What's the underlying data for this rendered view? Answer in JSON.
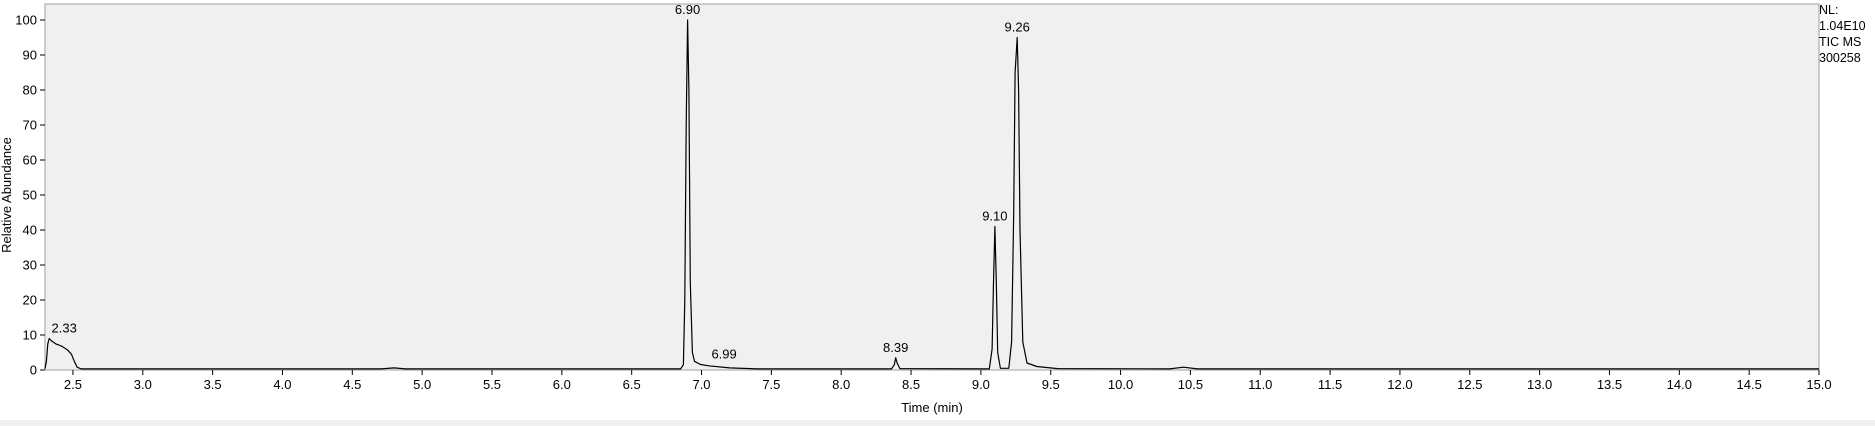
{
  "chart_data": {
    "type": "line",
    "xlabel": "Time (min)",
    "ylabel": "Relative Abundance",
    "xlim": [
      2.3,
      15.0
    ],
    "ylim": [
      0,
      100
    ],
    "x_ticks": [
      2.5,
      3.0,
      3.5,
      4.0,
      4.5,
      5.0,
      5.5,
      6.0,
      6.5,
      7.0,
      7.5,
      8.0,
      8.5,
      9.0,
      9.5,
      10.0,
      10.5,
      11.0,
      11.5,
      12.0,
      12.5,
      13.0,
      13.5,
      14.0,
      14.5,
      15.0
    ],
    "y_ticks": [
      0,
      10,
      20,
      30,
      40,
      50,
      60,
      70,
      80,
      90,
      100
    ],
    "grid": false,
    "colors": {
      "trace": "#000000",
      "plot_background": "#f0f0f0"
    },
    "series": [
      {
        "points": [
          [
            2.3,
            0.3
          ],
          [
            2.31,
            2.5
          ],
          [
            2.32,
            7.5
          ],
          [
            2.33,
            9.0
          ],
          [
            2.35,
            8.2
          ],
          [
            2.38,
            7.4
          ],
          [
            2.42,
            6.8
          ],
          [
            2.46,
            5.8
          ],
          [
            2.49,
            4.5
          ],
          [
            2.51,
            2.5
          ],
          [
            2.53,
            0.8
          ],
          [
            2.56,
            0.3
          ],
          [
            4.7,
            0.3
          ],
          [
            4.8,
            0.6
          ],
          [
            4.88,
            0.3
          ],
          [
            6.85,
            0.3
          ],
          [
            6.87,
            1.5
          ],
          [
            6.88,
            20
          ],
          [
            6.89,
            70
          ],
          [
            6.9,
            100
          ],
          [
            6.91,
            80
          ],
          [
            6.92,
            25
          ],
          [
            6.935,
            5
          ],
          [
            6.95,
            2.5
          ],
          [
            6.99,
            1.6
          ],
          [
            7.05,
            1.2
          ],
          [
            7.2,
            0.6
          ],
          [
            7.4,
            0.3
          ],
          [
            8.36,
            0.3
          ],
          [
            8.38,
            1.5
          ],
          [
            8.39,
            3.5
          ],
          [
            8.4,
            2.0
          ],
          [
            8.42,
            0.4
          ],
          [
            9.06,
            0.3
          ],
          [
            9.08,
            6
          ],
          [
            9.09,
            25
          ],
          [
            9.1,
            41
          ],
          [
            9.11,
            25
          ],
          [
            9.12,
            5
          ],
          [
            9.14,
            0.5
          ],
          [
            9.2,
            0.5
          ],
          [
            9.22,
            8
          ],
          [
            9.235,
            45
          ],
          [
            9.245,
            85
          ],
          [
            9.26,
            95
          ],
          [
            9.27,
            80
          ],
          [
            9.28,
            40
          ],
          [
            9.3,
            8
          ],
          [
            9.33,
            2
          ],
          [
            9.4,
            1
          ],
          [
            9.55,
            0.4
          ],
          [
            10.35,
            0.3
          ],
          [
            10.45,
            0.8
          ],
          [
            10.55,
            0.3
          ],
          [
            15.0,
            0.3
          ]
        ]
      }
    ],
    "peak_labels": [
      {
        "x": 2.33,
        "y": 9.0,
        "label": "2.33"
      },
      {
        "x": 6.9,
        "y": 100,
        "label": "6.90"
      },
      {
        "x": 6.99,
        "y": 1.6,
        "label": "6.99"
      },
      {
        "x": 8.39,
        "y": 3.5,
        "label": "8.39"
      },
      {
        "x": 9.1,
        "y": 41,
        "label": "9.10"
      },
      {
        "x": 9.26,
        "y": 95,
        "label": "9.26"
      }
    ]
  },
  "normalization": {
    "nl_label": "NL:",
    "nl_value": "1.04E10",
    "scan_type": "TIC  MS",
    "file_name": "300258"
  }
}
